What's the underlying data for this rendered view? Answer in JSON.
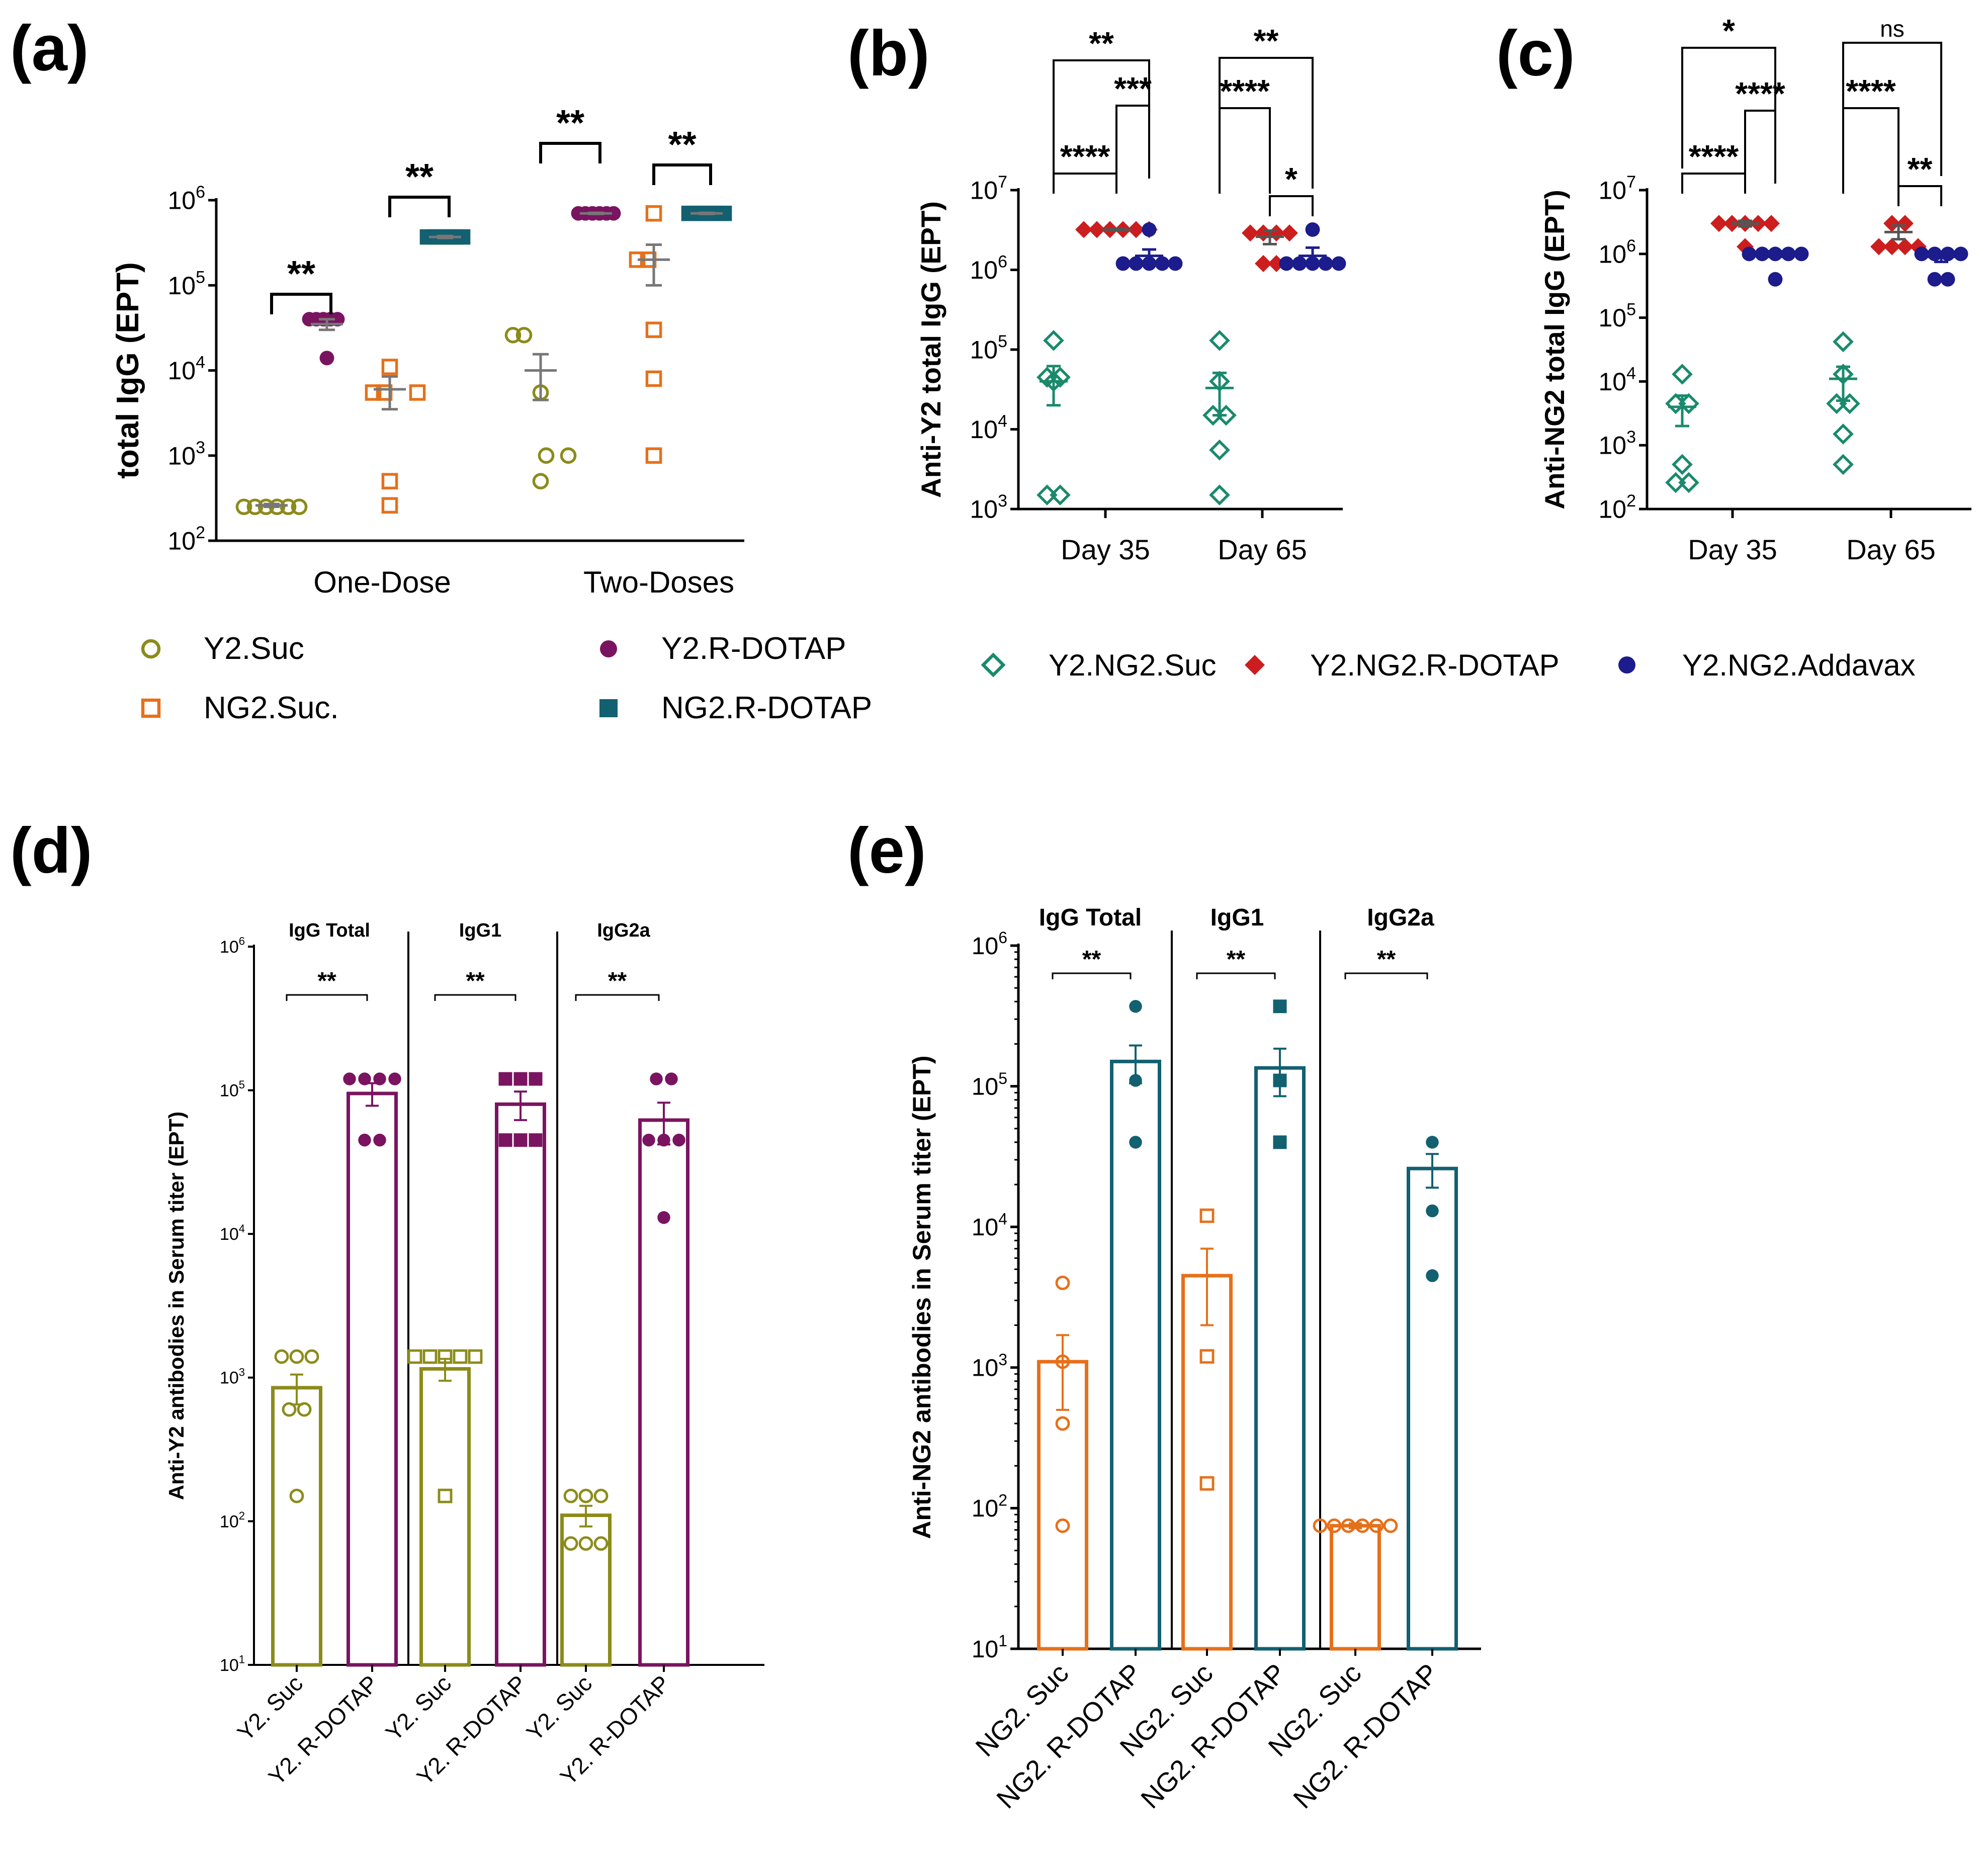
{
  "colors": {
    "olive": "#8b8b1a",
    "orange": "#e6701a",
    "purple": "#7a1460",
    "teal": "#126070",
    "green": "#1a8a6c",
    "red": "#cc1e1e",
    "navy": "#1c1c8c",
    "grey": "#777777"
  },
  "panels": {
    "a": "(a)",
    "b": "(b)",
    "c": "(c)",
    "d": "(d)",
    "e": "(e)"
  },
  "chart_data": [
    {
      "id": "a",
      "type": "scatter",
      "title": "",
      "ylabel": "total IgG   (EPT)",
      "yscale": "log",
      "ylim": [
        100,
        1000000
      ],
      "ytick_exponents": [
        "2",
        "3",
        "4",
        "5",
        "6"
      ],
      "categories": [
        "One-Dose",
        "Two-Doses"
      ],
      "legend": [
        {
          "name": "Y2.Suc",
          "marker": "circle-open",
          "color": "olive"
        },
        {
          "name": "Y2.R-DOTAP",
          "marker": "circle-filled",
          "color": "purple"
        },
        {
          "name": "NG2.Suc.",
          "marker": "square-open",
          "color": "orange"
        },
        {
          "name": "NG2.R-DOTAP",
          "marker": "square-filled",
          "color": "teal"
        }
      ],
      "groups": [
        {
          "category": "One-Dose",
          "series": "Y2.Suc",
          "marker": "circle-open",
          "color": "olive",
          "mean": 260,
          "sem": [
            250,
            270
          ],
          "values": [
            250,
            250,
            250,
            250,
            250,
            250
          ]
        },
        {
          "category": "One-Dose",
          "series": "Y2.R-DOTAP",
          "marker": "circle-filled",
          "color": "purple",
          "mean": 35000,
          "sem": [
            30000,
            40000
          ],
          "values": [
            40000,
            40000,
            40000,
            40000,
            40000,
            14000
          ]
        },
        {
          "category": "One-Dose",
          "series": "NG2.Suc.",
          "marker": "square-open",
          "color": "orange",
          "mean": 6000,
          "sem": [
            3500,
            8500
          ],
          "values": [
            11000,
            5500,
            5500,
            500,
            260,
            5500
          ]
        },
        {
          "category": "One-Dose",
          "series": "NG2.R-DOTAP",
          "marker": "square-filled",
          "color": "teal",
          "mean": 370000,
          "sem": [
            360000,
            380000
          ],
          "values": [
            370000,
            370000,
            370000,
            370000,
            370000,
            370000
          ]
        },
        {
          "category": "Two-Doses",
          "series": "Y2.Suc",
          "marker": "circle-open",
          "color": "olive",
          "mean": 10000,
          "sem": [
            4500,
            15500
          ],
          "values": [
            26000,
            26000,
            5500,
            1000,
            500,
            1000
          ]
        },
        {
          "category": "Two-Doses",
          "series": "Y2.R-DOTAP",
          "marker": "circle-filled",
          "color": "purple",
          "mean": 700000,
          "sem": [
            690000,
            710000
          ],
          "values": [
            700000,
            700000,
            700000,
            700000,
            700000,
            700000
          ]
        },
        {
          "category": "Two-Doses",
          "series": "NG2.Suc.",
          "marker": "square-open",
          "color": "orange",
          "mean": 200000,
          "sem": [
            100000,
            300000
          ],
          "values": [
            700000,
            200000,
            200000,
            30000,
            8000,
            1000
          ]
        },
        {
          "category": "Two-Doses",
          "series": "NG2.R-DOTAP",
          "marker": "square-filled",
          "color": "teal",
          "mean": 700000,
          "sem": [
            690000,
            710000
          ],
          "values": [
            700000,
            700000,
            700000,
            700000,
            700000,
            700000
          ]
        }
      ],
      "significance": [
        {
          "from": 0,
          "to": 1,
          "label": "**",
          "level": 0
        },
        {
          "from": 2,
          "to": 3,
          "label": "**",
          "level": 0
        },
        {
          "from": 4,
          "to": 5,
          "label": "**",
          "level": 0
        },
        {
          "from": 6,
          "to": 7,
          "label": "**",
          "level": 0
        }
      ]
    },
    {
      "id": "b",
      "type": "scatter",
      "ylabel": "Anti-Y2 total IgG (EPT)",
      "yscale": "log",
      "ylim": [
        1000,
        10000000
      ],
      "ytick_exponents": [
        "3",
        "4",
        "5",
        "6",
        "7"
      ],
      "categories": [
        "Day 35",
        "Day 65"
      ],
      "legend": [
        {
          "name": "Y2.NG2.Suc",
          "marker": "diamond-open",
          "color": "green"
        },
        {
          "name": "Y2.NG2.R-DOTAP",
          "marker": "diamond-filled",
          "color": "red"
        },
        {
          "name": "Y2.NG2.Addavax",
          "marker": "circle-filled",
          "color": "navy"
        }
      ],
      "groups": [
        {
          "category": "Day 35",
          "series": "Y2.NG2.Suc",
          "marker": "diamond-open",
          "color": "green",
          "mean": 40000,
          "sem": [
            20000,
            62000
          ],
          "values": [
            130000,
            45000,
            45000,
            40000,
            1500,
            1500
          ]
        },
        {
          "category": "Day 35",
          "series": "Y2.NG2.R-DOTAP",
          "marker": "diamond-filled",
          "color": "red",
          "mean": 3200000,
          "sem": [
            3150000,
            3250000
          ],
          "values": [
            3200000,
            3200000,
            3200000,
            3200000,
            3200000,
            3200000
          ]
        },
        {
          "category": "Day 35",
          "series": "Y2.NG2.Addavax",
          "marker": "circle-filled",
          "color": "navy",
          "mean": 1500000,
          "sem": [
            1200000,
            1800000
          ],
          "values": [
            3200000,
            1200000,
            1200000,
            1200000,
            1200000,
            1200000
          ]
        },
        {
          "category": "Day 65",
          "series": "Y2.NG2.Suc",
          "marker": "diamond-open",
          "color": "green",
          "mean": 33000,
          "sem": [
            15000,
            51000
          ],
          "values": [
            130000,
            40000,
            15000,
            5500,
            1500,
            15000
          ]
        },
        {
          "category": "Day 65",
          "series": "Y2.NG2.R-DOTAP",
          "marker": "diamond-filled",
          "color": "red",
          "mean": 2600000,
          "sem": [
            2100000,
            3100000
          ],
          "values": [
            2900000,
            2900000,
            2900000,
            1200000,
            1200000,
            2900000
          ]
        },
        {
          "category": "Day 65",
          "series": "Y2.NG2.Addavax",
          "marker": "circle-filled",
          "color": "navy",
          "mean": 1500000,
          "sem": [
            1200000,
            1900000
          ],
          "values": [
            3200000,
            1200000,
            1200000,
            1200000,
            1200000,
            1200000
          ]
        }
      ],
      "significance": [
        {
          "from": 0,
          "to": 1,
          "label": "****",
          "level": 0
        },
        {
          "from": 1,
          "to": 2,
          "label": "***",
          "level": 1
        },
        {
          "from": 0,
          "to": 2,
          "label": "**",
          "level": 2
        },
        {
          "from": 4,
          "to": 5,
          "label": "*",
          "level": 0
        },
        {
          "from": 3,
          "to": 4,
          "label": "****",
          "level": 1
        },
        {
          "from": 3,
          "to": 5,
          "label": "**",
          "level": 2
        }
      ]
    },
    {
      "id": "c",
      "type": "scatter",
      "ylabel": "Anti-NG2 total IgG (EPT)",
      "yscale": "log",
      "ylim": [
        100,
        10000000
      ],
      "ytick_exponents": [
        "2",
        "3",
        "4",
        "5",
        "6",
        "7"
      ],
      "categories": [
        "Day 35",
        "Day 65"
      ],
      "groups": [
        {
          "category": "Day 35",
          "series": "Y2.NG2.Suc",
          "marker": "diamond-open",
          "color": "green",
          "mean": 4000,
          "sem": [
            2000,
            6000
          ],
          "values": [
            13000,
            4500,
            4500,
            500,
            260,
            260
          ]
        },
        {
          "category": "Day 35",
          "series": "Y2.NG2.R-DOTAP",
          "marker": "diamond-filled",
          "color": "red",
          "mean": 3000000,
          "sem": [
            2700000,
            3300000
          ],
          "values": [
            3000000,
            3000000,
            3000000,
            3000000,
            3000000,
            1300000
          ]
        },
        {
          "category": "Day 35",
          "series": "Y2.NG2.Addavax",
          "marker": "circle-filled",
          "color": "navy",
          "mean": 1000000,
          "sem": [
            900000,
            1100000
          ],
          "values": [
            1000000,
            1000000,
            1000000,
            1000000,
            1000000,
            400000
          ]
        },
        {
          "category": "Day 65",
          "series": "Y2.NG2.Suc",
          "marker": "diamond-open",
          "color": "green",
          "mean": 11000,
          "sem": [
            5000,
            17000
          ],
          "values": [
            42000,
            13000,
            4500,
            4500,
            1500,
            500
          ]
        },
        {
          "category": "Day 65",
          "series": "Y2.NG2.R-DOTAP",
          "marker": "diamond-filled",
          "color": "red",
          "mean": 2200000,
          "sem": [
            1700000,
            2800000
          ],
          "values": [
            3000000,
            3000000,
            1300000,
            1300000,
            1300000,
            1300000
          ]
        },
        {
          "category": "Day 65",
          "series": "Y2.NG2.Addavax",
          "marker": "circle-filled",
          "color": "navy",
          "mean": 900000,
          "sem": [
            750000,
            1050000
          ],
          "values": [
            1000000,
            1000000,
            1000000,
            400000,
            400000,
            1000000
          ]
        }
      ],
      "significance": [
        {
          "from": 0,
          "to": 1,
          "label": "****",
          "level": 0
        },
        {
          "from": 1,
          "to": 2,
          "label": "****",
          "level": 1
        },
        {
          "from": 0,
          "to": 2,
          "label": "*",
          "level": 2
        },
        {
          "from": 4,
          "to": 5,
          "label": "**",
          "level": 0
        },
        {
          "from": 3,
          "to": 4,
          "label": "****",
          "level": 1
        },
        {
          "from": 3,
          "to": 5,
          "label": "ns",
          "level": 2
        }
      ]
    },
    {
      "id": "d",
      "type": "bar",
      "ylabel": "Anti-Y2 antibodies  in Serum titer (EPT)",
      "yscale": "log",
      "ylim": [
        10,
        1000000
      ],
      "ytick_exponents": [
        "1",
        "2",
        "3",
        "4",
        "5",
        "6"
      ],
      "sections": [
        "IgG Total",
        "IgG1",
        "IgG2a"
      ],
      "categories": [
        "Y2. Suc",
        "Y2. R-DOTAP",
        "Y2. Suc",
        "Y2. R-DOTAP",
        "Y2. Suc",
        "Y2. R-DOTAP"
      ],
      "bars": [
        {
          "color": "olive",
          "marker": "circle-open",
          "mean": 850,
          "sem": [
            650,
            1050
          ],
          "values": [
            1400,
            1400,
            1400,
            600,
            600,
            150
          ]
        },
        {
          "color": "purple",
          "marker": "circle-filled",
          "mean": 95000,
          "sem": [
            78000,
            112000
          ],
          "values": [
            120000,
            120000,
            120000,
            120000,
            45000,
            45000
          ]
        },
        {
          "color": "olive",
          "marker": "square-open",
          "mean": 1150,
          "sem": [
            950,
            1350
          ],
          "values": [
            1400,
            1400,
            1400,
            1400,
            1400,
            150
          ]
        },
        {
          "color": "purple",
          "marker": "square-filled",
          "mean": 80000,
          "sem": [
            62000,
            98000
          ],
          "values": [
            120000,
            120000,
            120000,
            45000,
            45000,
            45000
          ]
        },
        {
          "color": "olive",
          "marker": "circle-open",
          "mean": 110,
          "sem": [
            92,
            128
          ],
          "values": [
            150,
            150,
            150,
            70,
            70,
            70
          ]
        },
        {
          "color": "purple",
          "marker": "circle-filled",
          "mean": 62000,
          "sem": [
            42000,
            82000
          ],
          "values": [
            120000,
            120000,
            45000,
            45000,
            45000,
            13000
          ]
        }
      ],
      "significance": [
        {
          "from": 0,
          "to": 1,
          "label": "**"
        },
        {
          "from": 2,
          "to": 3,
          "label": "**"
        },
        {
          "from": 4,
          "to": 5,
          "label": "**"
        }
      ]
    },
    {
      "id": "e",
      "type": "bar",
      "ylabel": "Anti-NG2 antibodies  in Serum titer (EPT)",
      "yscale": "log",
      "ylim": [
        10,
        1000000
      ],
      "ytick_exponents": [
        "1",
        "2",
        "3",
        "4",
        "5",
        "6"
      ],
      "sections": [
        "IgG Total",
        "IgG1",
        "IgG2a"
      ],
      "categories": [
        "NG2. Suc",
        "NG2. R-DOTAP",
        "NG2. Suc",
        "NG2. R-DOTAP",
        "NG2. Suc",
        "NG2. R-DOTAP"
      ],
      "bars": [
        {
          "color": "orange",
          "marker": "circle-open",
          "mean": 1100,
          "sem": [
            500,
            1700
          ],
          "values": [
            4000,
            1100,
            400,
            75
          ]
        },
        {
          "color": "teal",
          "marker": "circle-filled",
          "mean": 150000,
          "sem": [
            105000,
            195000
          ],
          "values": [
            370000,
            110000,
            40000
          ]
        },
        {
          "color": "orange",
          "marker": "square-open",
          "mean": 4500,
          "sem": [
            2000,
            7000
          ],
          "values": [
            12000,
            1200,
            150
          ]
        },
        {
          "color": "teal",
          "marker": "square-filled",
          "mean": 135000,
          "sem": [
            85000,
            185000
          ],
          "values": [
            370000,
            110000,
            40000
          ]
        },
        {
          "color": "orange",
          "marker": "circle-open",
          "mean": 75,
          "sem": [
            72,
            78
          ],
          "values": [
            75,
            75,
            75,
            75,
            75,
            75
          ]
        },
        {
          "color": "teal",
          "marker": "circle-filled",
          "mean": 26000,
          "sem": [
            19000,
            33000
          ],
          "values": [
            40000,
            13000,
            4500
          ]
        }
      ],
      "significance": [
        {
          "from": 0,
          "to": 1,
          "label": "**"
        },
        {
          "from": 2,
          "to": 3,
          "label": "**"
        },
        {
          "from": 4,
          "to": 5,
          "label": "**"
        }
      ]
    }
  ]
}
